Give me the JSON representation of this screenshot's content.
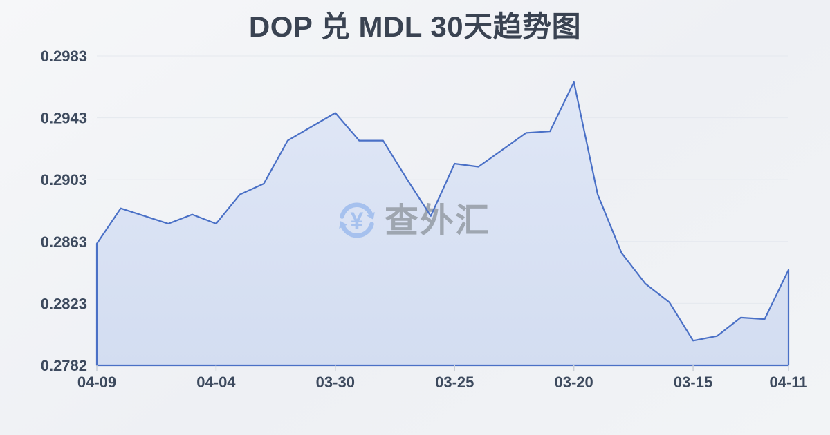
{
  "title": "DOP 兑 MDL 30天趋势图",
  "watermark": {
    "icon": "currency-exchange-refresh-icon",
    "currency_symbol": "¥",
    "text": "查外汇"
  },
  "colors": {
    "line": "#4a70c6",
    "area_fill_top": "#e0e7f6",
    "area_fill_bottom": "#d3ddf1",
    "grid_line": "#e4e8ee",
    "axis_tick": "#c9cfd8",
    "axis_label": "#3d4a5e",
    "title_text": "#3a4352",
    "watermark_icon": "#a6c1ee",
    "watermark_text": "#9aa1ab",
    "background": "#f1f3f6"
  },
  "chart_data": {
    "type": "area",
    "title": "DOP 兑 MDL 30天趋势图",
    "series_name": "DOP/MDL",
    "legend": "none",
    "grid": "horizontal",
    "x_axis": {
      "tick_labels": [
        {
          "index": 0,
          "label": "04-09"
        },
        {
          "index": 5,
          "label": "04-04"
        },
        {
          "index": 10,
          "label": "03-30"
        },
        {
          "index": 15,
          "label": "03-25"
        },
        {
          "index": 20,
          "label": "03-20"
        },
        {
          "index": 25,
          "label": "03-15"
        },
        {
          "index": 29,
          "label": "04-11"
        }
      ]
    },
    "y_axis": {
      "tick_labels": [
        "0.2983",
        "0.2943",
        "0.2903",
        "0.2863",
        "0.2823",
        "0.2782"
      ],
      "min": 0.2782,
      "max": 0.2983
    },
    "values": [
      0.2861,
      0.2884,
      0.2879,
      0.2874,
      0.288,
      0.2874,
      0.2893,
      0.29,
      0.2928,
      0.2937,
      0.2946,
      0.2928,
      0.2928,
      0.2903,
      0.2879,
      0.2913,
      0.2911,
      0.2922,
      0.2933,
      0.2934,
      0.2966,
      0.2893,
      0.2855,
      0.2835,
      0.2823,
      0.2798,
      0.2801,
      0.2813,
      0.2812,
      0.2844
    ]
  }
}
